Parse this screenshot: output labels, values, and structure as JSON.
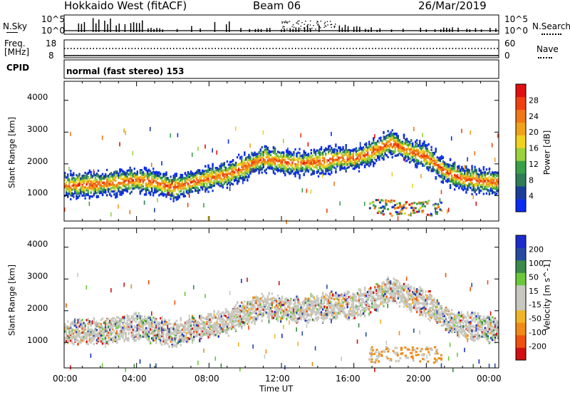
{
  "header": {
    "left": "Hokkaido West (fitACF)",
    "center": "Beam 06",
    "right": "26/Mar/2019"
  },
  "noise_panel": {
    "left_label": "N.Sky",
    "right_label": "N.Search",
    "left_ticks": [
      "10^5",
      "10^0"
    ],
    "right_ticks": [
      "10^5",
      "10^0"
    ]
  },
  "freq_panel": {
    "left_label": "Freq.",
    "unit": "[MHz]",
    "right_label": "Nave",
    "left_ticks": [
      "18",
      "8"
    ],
    "right_ticks": [
      "60",
      "0"
    ]
  },
  "cpid_panel": {
    "label": "CPID",
    "text": "normal (fast stereo) 153"
  },
  "colors": {
    "power": [
      "#0a2cf0",
      "#1a3d9a",
      "#2e7d57",
      "#3aa048",
      "#9bd13c",
      "#f0d21e",
      "#f0a21a",
      "#f07818",
      "#f04010",
      "#e01010"
    ],
    "velocity": [
      "#d01010",
      "#f05010",
      "#f08a18",
      "#f0b428",
      "#c8c8c0",
      "#c8c8c0",
      "#6ac83c",
      "#3a8a4a",
      "#264aa0",
      "#1c2ccc"
    ]
  },
  "chart_data": [
    {
      "type": "heatmap",
      "title": "Power",
      "ylabel": "Slant Range [km]",
      "yticks": [
        "1000",
        "2000",
        "3000",
        "4000"
      ],
      "ylim": [
        200,
        4600
      ],
      "xlim": [
        0,
        24
      ],
      "colorbar": {
        "label": "Power [dB]",
        "ticks": [
          "4",
          "8",
          "12",
          "16",
          "20",
          "24",
          "28"
        ],
        "range": [
          0,
          32
        ]
      },
      "band_center_km": [
        [
          0,
          1350
        ],
        [
          2,
          1400
        ],
        [
          4,
          1520
        ],
        [
          5,
          1450
        ],
        [
          6,
          1280
        ],
        [
          7,
          1450
        ],
        [
          8,
          1580
        ],
        [
          9,
          1700
        ],
        [
          10,
          1950
        ],
        [
          11,
          2200
        ],
        [
          12,
          2100
        ],
        [
          13,
          2050
        ],
        [
          14,
          2100
        ],
        [
          15,
          2200
        ],
        [
          16,
          2200
        ],
        [
          17,
          2400
        ],
        [
          18,
          2700
        ],
        [
          19,
          2450
        ],
        [
          20,
          2250
        ],
        [
          21,
          1800
        ],
        [
          22,
          1550
        ],
        [
          23,
          1500
        ],
        [
          24,
          1450
        ]
      ]
    },
    {
      "type": "heatmap",
      "title": "Velocity",
      "ylabel": "Slant Range [km]",
      "yticks": [
        "1000",
        "2000",
        "3000",
        "4000"
      ],
      "ylim": [
        200,
        4600
      ],
      "xlim": [
        0,
        24
      ],
      "colorbar": {
        "label": "Velocity [m s^-1]",
        "ticks": [
          "-200",
          "-100",
          "-50",
          "-15",
          "15",
          "50",
          "100",
          "200"
        ],
        "range": [
          -250,
          250
        ]
      }
    }
  ],
  "xaxis": {
    "ticks": [
      "00:00",
      "04:00",
      "08:00",
      "12:00",
      "16:00",
      "20:00",
      "00:00"
    ],
    "label": "Time UT"
  }
}
